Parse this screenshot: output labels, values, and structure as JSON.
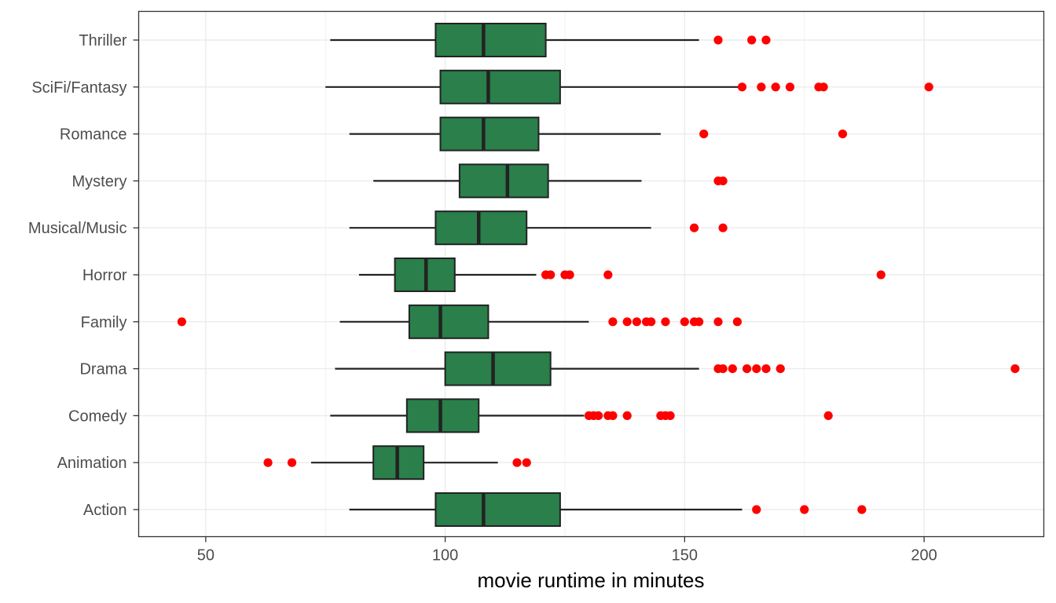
{
  "chart_data": {
    "type": "boxplot",
    "orientation": "horizontal",
    "xlabel": "movie runtime in minutes",
    "ylabel": "",
    "xlim": [
      36,
      225
    ],
    "xticks": [
      50,
      100,
      150,
      200
    ],
    "x_minor_ticks": [
      75,
      125,
      175,
      225
    ],
    "grid": true,
    "box_color": "#2a7f4a",
    "outlier_color": "#ff0000",
    "categories": [
      "Action",
      "Animation",
      "Comedy",
      "Drama",
      "Family",
      "Horror",
      "Musical/Music",
      "Mystery",
      "Romance",
      "SciFi/Fantasy",
      "Thriller"
    ],
    "boxes": [
      {
        "category": "Action",
        "whisker_low": 80,
        "q1": 98,
        "median": 108,
        "q3": 124,
        "whisker_high": 162,
        "outliers": [
          165,
          175,
          187
        ]
      },
      {
        "category": "Animation",
        "whisker_low": 72,
        "q1": 85,
        "median": 90,
        "q3": 95.5,
        "whisker_high": 111,
        "outliers": [
          63,
          68,
          115,
          117
        ]
      },
      {
        "category": "Comedy",
        "whisker_low": 76,
        "q1": 92,
        "median": 99,
        "q3": 107,
        "whisker_high": 129,
        "outliers": [
          130,
          131,
          132,
          134,
          135,
          138,
          145,
          146,
          147,
          180
        ]
      },
      {
        "category": "Drama",
        "whisker_low": 77,
        "q1": 100,
        "median": 110,
        "q3": 122,
        "whisker_high": 153,
        "outliers": [
          157,
          158,
          160,
          163,
          165,
          167,
          170,
          219
        ]
      },
      {
        "category": "Family",
        "whisker_low": 78,
        "q1": 92.5,
        "median": 99,
        "q3": 109,
        "whisker_high": 130,
        "outliers": [
          45,
          135,
          138,
          140,
          142,
          143,
          146,
          150,
          152,
          153,
          157,
          161
        ]
      },
      {
        "category": "Horror",
        "whisker_low": 82,
        "q1": 89.5,
        "median": 96,
        "q3": 102,
        "whisker_high": 119,
        "outliers": [
          121,
          122,
          125,
          126,
          134,
          191
        ]
      },
      {
        "category": "Musical/Music",
        "whisker_low": 80,
        "q1": 98,
        "median": 107,
        "q3": 117,
        "whisker_high": 143,
        "outliers": [
          152,
          158
        ]
      },
      {
        "category": "Mystery",
        "whisker_low": 85,
        "q1": 103,
        "median": 113,
        "q3": 121.5,
        "whisker_high": 141,
        "outliers": [
          157,
          158
        ]
      },
      {
        "category": "Romance",
        "whisker_low": 80,
        "q1": 99,
        "median": 108,
        "q3": 119.5,
        "whisker_high": 145,
        "outliers": [
          154,
          183
        ]
      },
      {
        "category": "SciFi/Fantasy",
        "whisker_low": 75,
        "q1": 99,
        "median": 109,
        "q3": 124,
        "whisker_high": 162,
        "outliers": [
          162,
          166,
          169,
          172,
          178,
          179,
          201
        ]
      },
      {
        "category": "Thriller",
        "whisker_low": 76,
        "q1": 98,
        "median": 108,
        "q3": 121,
        "whisker_high": 153,
        "outliers": [
          157,
          164,
          167
        ]
      }
    ]
  }
}
